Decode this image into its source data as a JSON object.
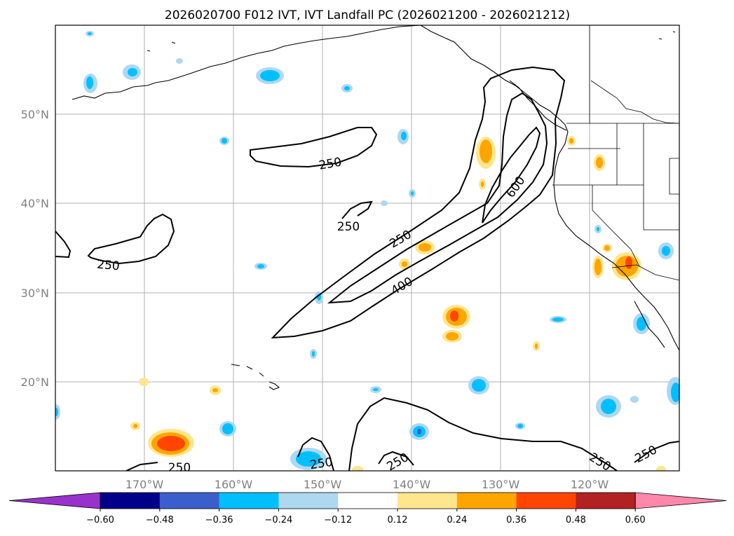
{
  "title": "2026020700 F012 IVT, IVT Landfall PC (2026021200 - 2026021212)",
  "latitude_labels": [
    "50°N",
    "40°N",
    "30°N",
    "20°N"
  ],
  "longitude_labels": [
    "170°W",
    "160°W",
    "150°W",
    "140°W",
    "130°W",
    "120°W"
  ],
  "ivt_contour_labels": [
    "250",
    "250",
    "250",
    "250",
    "400",
    "600",
    "250",
    "250",
    "250",
    "250"
  ],
  "colorbar": {
    "tick_labels": [
      "−0.60",
      "−0.48",
      "−0.36",
      "−0.24",
      "−0.12",
      "0.12",
      "0.24",
      "0.36",
      "0.48",
      "0.60"
    ],
    "colors": [
      "#9932cc",
      "#00008b",
      "#3a5fcd",
      "#00bfff",
      "#add8f0",
      "#ffffff",
      "#ffe68c",
      "#ffa500",
      "#ff4500",
      "#b22222",
      "#ff88aa"
    ]
  },
  "chart_data": {
    "type": "heatmap",
    "map_extent": {
      "lon": [
        -180,
        -110
      ],
      "lat": [
        10,
        60
      ]
    },
    "gridlines": true,
    "contour_variable": "IVT",
    "contour_levels": [
      250,
      400,
      600
    ],
    "shaded_variable": "IVT Landfall PC",
    "shading_levels": [
      -0.6,
      -0.48,
      -0.36,
      -0.24,
      -0.12,
      0.12,
      0.24,
      0.36,
      0.48,
      0.6
    ]
  }
}
